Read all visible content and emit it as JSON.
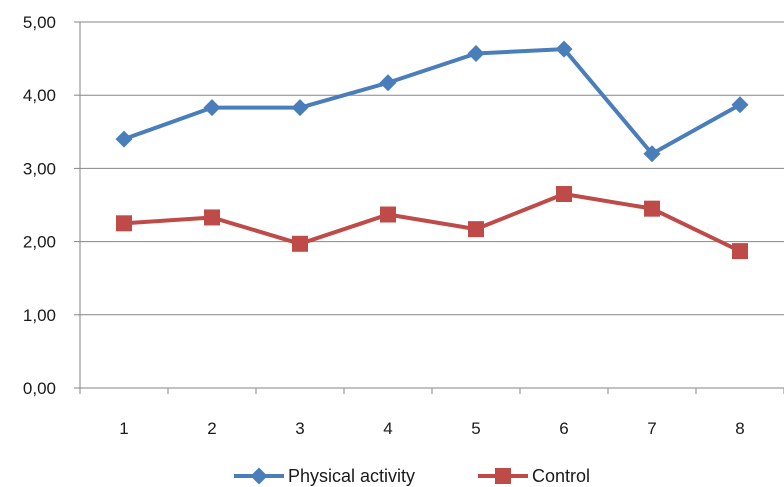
{
  "chart_data": {
    "type": "line",
    "title": "",
    "xlabel": "",
    "ylabel": "",
    "categories": [
      "1",
      "2",
      "3",
      "4",
      "5",
      "6",
      "7",
      "8"
    ],
    "ylim": [
      0,
      5
    ],
    "y_ticks": [
      "0,00",
      "1,00",
      "2,00",
      "3,00",
      "4,00",
      "5,00"
    ],
    "grid": "horizontal",
    "legend_position": "bottom",
    "series": [
      {
        "name": "Physical activity",
        "color": "#4a7ebb",
        "marker": "diamond",
        "values": [
          3.4,
          3.83,
          3.83,
          4.17,
          4.57,
          4.63,
          3.2,
          3.87
        ]
      },
      {
        "name": "Control",
        "color": "#be4b48",
        "marker": "square",
        "values": [
          2.25,
          2.33,
          1.97,
          2.37,
          2.17,
          2.65,
          2.45,
          1.87
        ]
      }
    ]
  }
}
